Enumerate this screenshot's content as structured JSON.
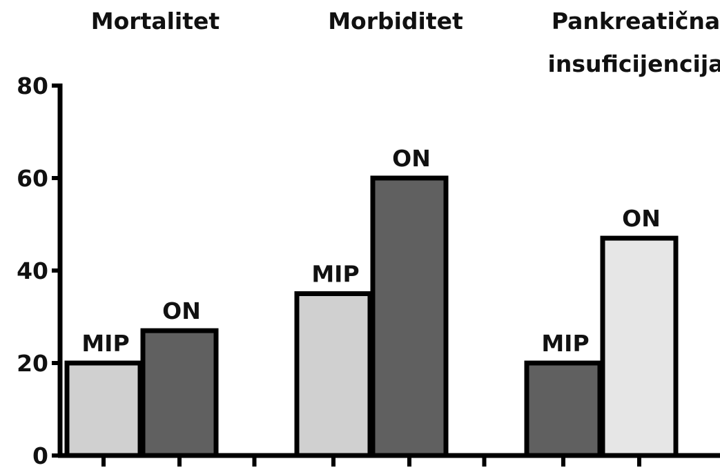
{
  "chart_data": {
    "type": "bar",
    "categories": [
      "Mortalitet",
      "Morbiditet",
      "Pankreatična insuficijencija"
    ],
    "series": [
      {
        "name": "MIP",
        "colors": [
          "#d0d0d0",
          "#d0d0d0",
          "#606060"
        ],
        "values": [
          20,
          35,
          20
        ]
      },
      {
        "name": "ON",
        "colors": [
          "#606060",
          "#606060",
          "#e6e6e6"
        ],
        "values": [
          27,
          60,
          47
        ]
      }
    ],
    "ylim": [
      0,
      80
    ],
    "yticks": [
      0,
      20,
      40,
      60,
      80
    ],
    "grid": false
  }
}
